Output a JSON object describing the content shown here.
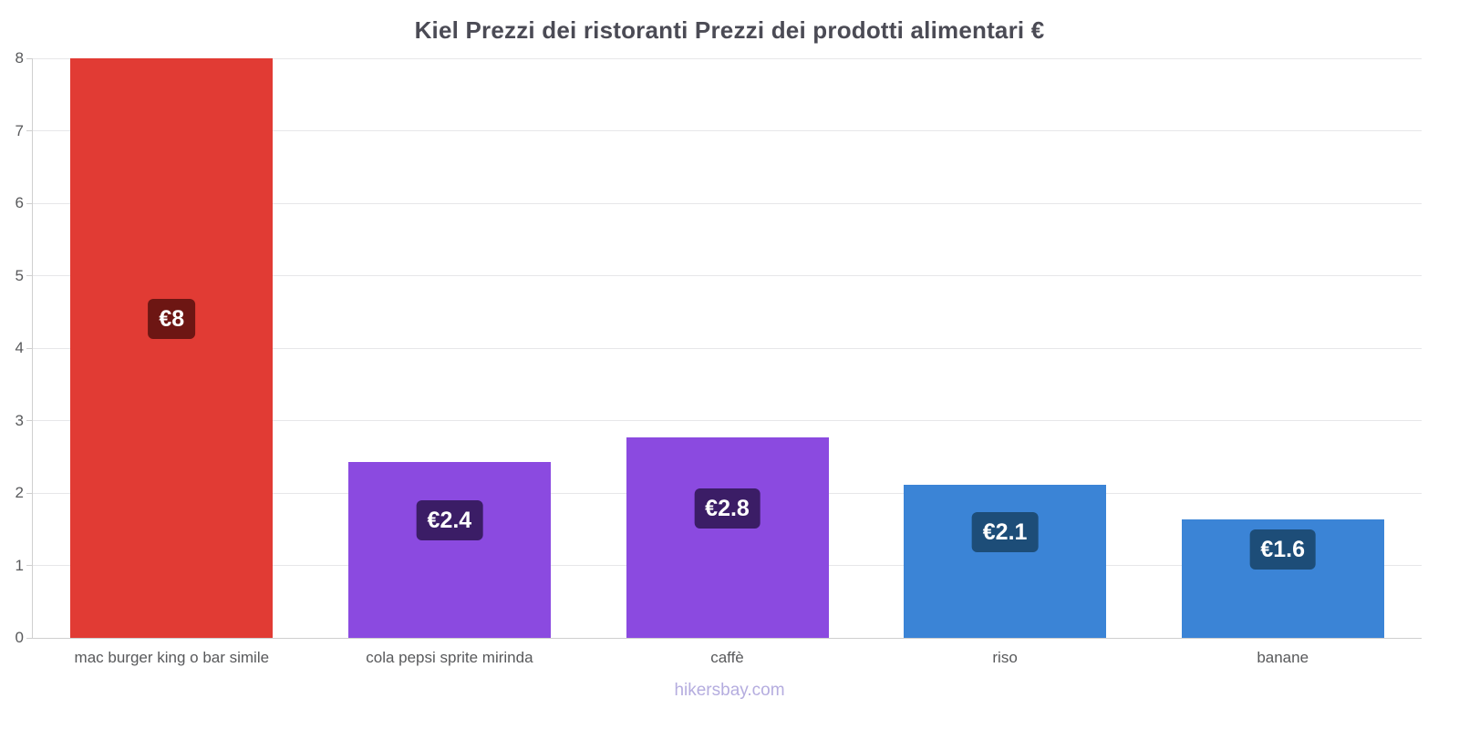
{
  "chart_data": {
    "type": "bar",
    "title": "Kiel Prezzi dei ristoranti Prezzi dei prodotti alimentari €",
    "categories": [
      "mac burger king o bar simile",
      "cola pepsi sprite mirinda",
      "caffè",
      "riso",
      "banane"
    ],
    "values": [
      8,
      2.43,
      2.77,
      2.11,
      1.63
    ],
    "value_labels": [
      "€8",
      "€2.4",
      "€2.8",
      "€2.1",
      "€1.6"
    ],
    "currency": "€",
    "bar_colors": [
      "#e13b34",
      "#8b4ae0",
      "#8b4ae0",
      "#3b84d6",
      "#3b84d6"
    ],
    "label_bg_colors": [
      "#6d1613",
      "#3b1d66",
      "#3b1d66",
      "#1d4d78",
      "#1d4d78"
    ],
    "ylim": [
      0,
      8
    ],
    "yticks": [
      0,
      1,
      2,
      3,
      4,
      5,
      6,
      7,
      8
    ],
    "grid": true,
    "legend_position": "none",
    "xlabel": "",
    "ylabel": ""
  },
  "footer": {
    "text": "hikersbay.com"
  },
  "colors": {
    "background": "#ffffff",
    "title_text": "#4b4b55",
    "axis_text": "#58595b",
    "gridline": "#e7e7e9",
    "footer_text": "#b5addf"
  }
}
